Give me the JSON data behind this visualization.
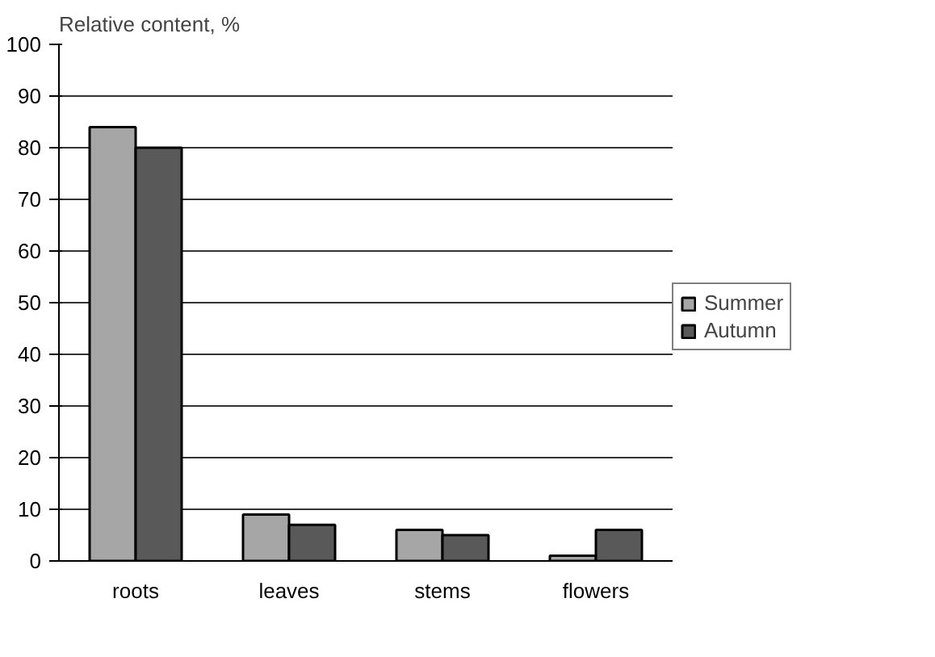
{
  "chart_data": {
    "type": "bar",
    "ylabel": "Relative content, %",
    "categories": [
      "roots",
      "leaves",
      "stems",
      "flowers"
    ],
    "series": [
      {
        "name": "Summer",
        "color": "#a6a6a6",
        "values": [
          84,
          9,
          6,
          1
        ]
      },
      {
        "name": "Autumn",
        "color": "#595959",
        "values": [
          80,
          7,
          5,
          6
        ]
      }
    ],
    "ylim": [
      0,
      100
    ],
    "yticks": [
      0,
      10,
      20,
      30,
      40,
      50,
      60,
      70,
      80,
      90,
      100
    ],
    "grid": "y",
    "legend": "right"
  }
}
